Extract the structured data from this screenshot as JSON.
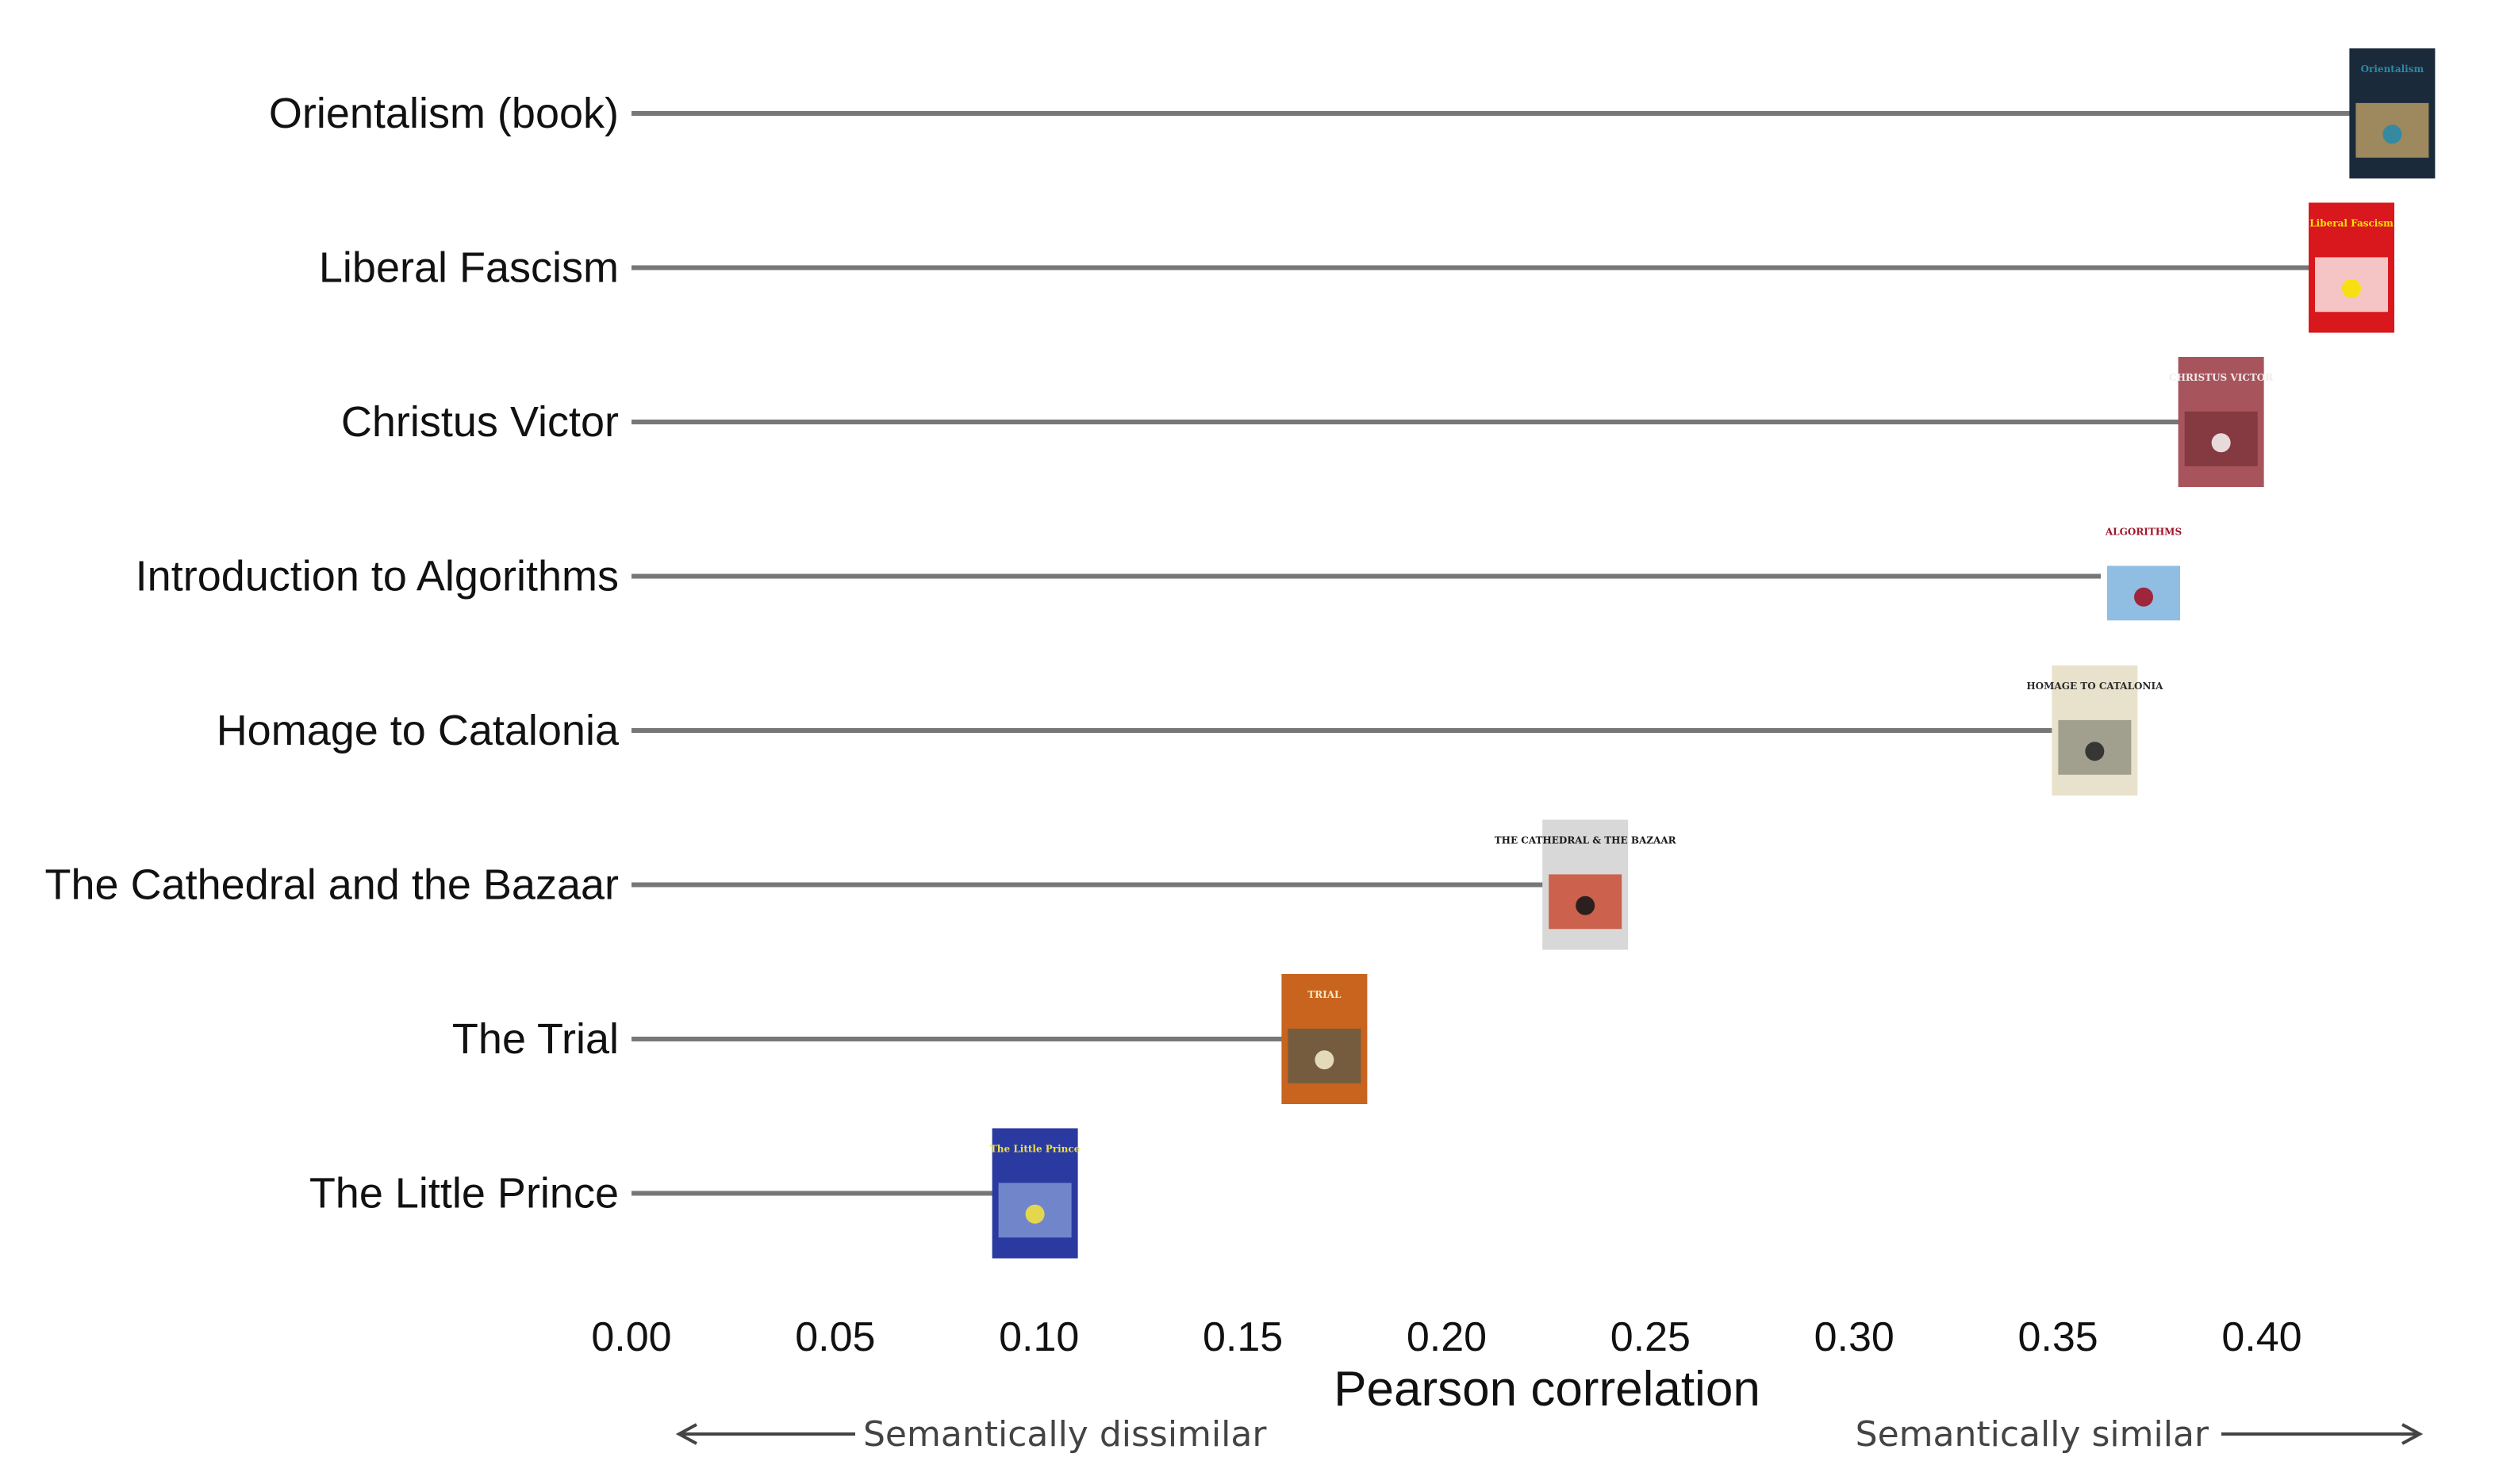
{
  "chart_data": {
    "type": "lollipop",
    "title": "",
    "xlabel": "Pearson correlation",
    "ylabel": "",
    "xlim": [
      0.0,
      0.44
    ],
    "xticks": [
      "0.00",
      "0.05",
      "0.10",
      "0.15",
      "0.20",
      "0.25",
      "0.30",
      "0.35",
      "0.40"
    ],
    "grid": false,
    "categories": [
      "Orientalism (book)",
      "Liberal Fascism",
      "Christus Victor",
      "Introduction to Algorithms",
      "Homage to Catalonia",
      "The Cathedral and the Bazaar",
      "The Trial",
      "The Little Prince"
    ],
    "values": [
      0.432,
      0.422,
      0.39,
      0.371,
      0.359,
      0.234,
      0.17,
      0.099
    ],
    "markers": [
      {
        "kind": "book-cover",
        "cover_text": "Orientalism",
        "colors": [
          "#1a2a3a",
          "#2a8aa8",
          "#c9a96a"
        ]
      },
      {
        "kind": "book-cover",
        "cover_text": "Liberal Fascism",
        "colors": [
          "#d8181c",
          "#f6e200",
          "#ffffff"
        ]
      },
      {
        "kind": "book-cover",
        "cover_text": "CHRISTUS VICTOR",
        "colors": [
          "#a8545c",
          "#f2ecea",
          "#7a3038"
        ]
      },
      {
        "kind": "book-cover",
        "cover_text": "ALGORITHMS",
        "colors": [
          "#ffffff",
          "#a0142a",
          "#6aa8d8"
        ]
      },
      {
        "kind": "book-cover",
        "cover_text": "HOMAGE TO CATALONIA",
        "colors": [
          "#e8e2cc",
          "#2a2a2a",
          "#8a8a7a"
        ]
      },
      {
        "kind": "book-cover",
        "cover_text": "THE CATHEDRAL & THE BAZAAR",
        "colors": [
          "#d8d8d8",
          "#1a1a1a",
          "#c83a20"
        ]
      },
      {
        "kind": "book-cover",
        "cover_text": "TRIAL",
        "colors": [
          "#c8641e",
          "#f0e8c8",
          "#5a5a4a"
        ]
      },
      {
        "kind": "book-cover",
        "cover_text": "The Little Prince",
        "colors": [
          "#2a3aa0",
          "#f0e040",
          "#8aa0d8"
        ]
      }
    ],
    "annotations": {
      "left": "Semantically dissimilar",
      "right": "Semantically similar"
    },
    "colors": {
      "stem": "#777777",
      "arrow": "#444444"
    }
  }
}
